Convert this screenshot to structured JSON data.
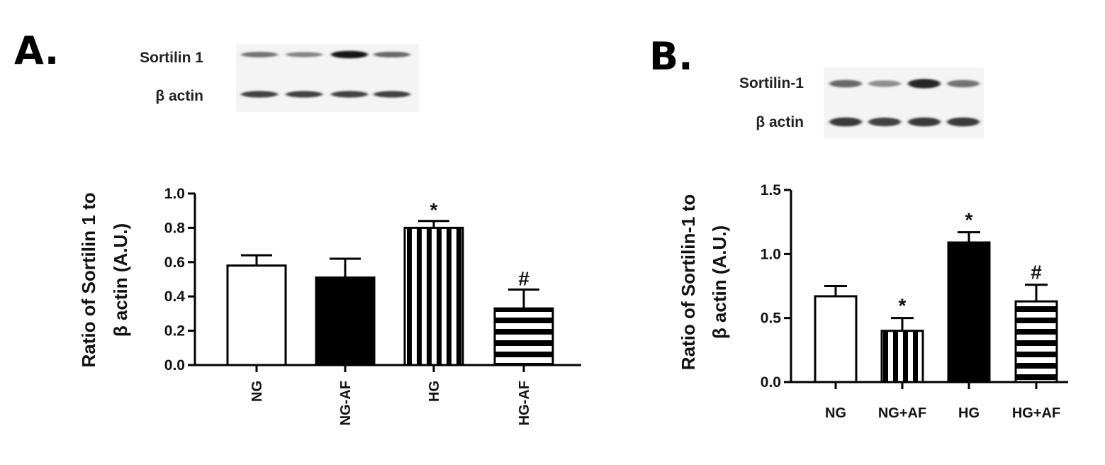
{
  "chart_data": [
    {
      "panel": "A.",
      "type": "bar",
      "blot": {
        "rows": [
          {
            "label": "Sortilin 1",
            "lanes": [
              0.45,
              0.35,
              0.95,
              0.5
            ]
          },
          {
            "label": "β actin",
            "lanes": [
              0.7,
              0.7,
              0.7,
              0.7
            ]
          }
        ]
      },
      "ylabel_line1": "Ratio of Sortilin 1 to",
      "ylabel_line2": "β actin  (A.U.)",
      "ylim": [
        0,
        1.0
      ],
      "yticks": [
        "0.0",
        "0.2",
        "0.4",
        "0.6",
        "0.8",
        "1.0"
      ],
      "ytick_values": [
        0,
        0.2,
        0.4,
        0.6,
        0.8,
        1.0
      ],
      "categories": [
        "NG",
        "NG-AF",
        "HG",
        "HG-AF"
      ],
      "x_label_rotated": true,
      "values": [
        0.58,
        0.51,
        0.8,
        0.33
      ],
      "errors": [
        0.06,
        0.11,
        0.04,
        0.11
      ],
      "patterns": [
        "white",
        "black",
        "vstripes",
        "hstripes"
      ],
      "annotations": [
        "",
        "",
        "*",
        "#"
      ]
    },
    {
      "panel": "B.",
      "type": "bar",
      "blot": {
        "rows": [
          {
            "label": "Sortilin-1",
            "lanes": [
              0.5,
              0.3,
              0.85,
              0.45
            ]
          },
          {
            "label": "β actin",
            "lanes": [
              0.75,
              0.7,
              0.75,
              0.75
            ]
          }
        ]
      },
      "ylabel_line1": "Ratio of Sortilin-1 to",
      "ylabel_line2": "β actin  (A.U.)",
      "ylim": [
        0,
        1.5
      ],
      "yticks": [
        "0.0",
        "0.5",
        "1.0",
        "1.5"
      ],
      "ytick_values": [
        0,
        0.5,
        1.0,
        1.5
      ],
      "categories": [
        "NG",
        "NG+AF",
        "HG",
        "HG+AF"
      ],
      "x_label_rotated": false,
      "values": [
        0.67,
        0.4,
        1.09,
        0.63
      ],
      "errors": [
        0.08,
        0.1,
        0.08,
        0.13
      ],
      "patterns": [
        "white",
        "vstripes",
        "black",
        "hstripes"
      ],
      "annotations": [
        "",
        "*",
        "*",
        "#"
      ]
    }
  ],
  "colors": {
    "ink": "#000000",
    "blot_bg": "#f4f4f4"
  }
}
